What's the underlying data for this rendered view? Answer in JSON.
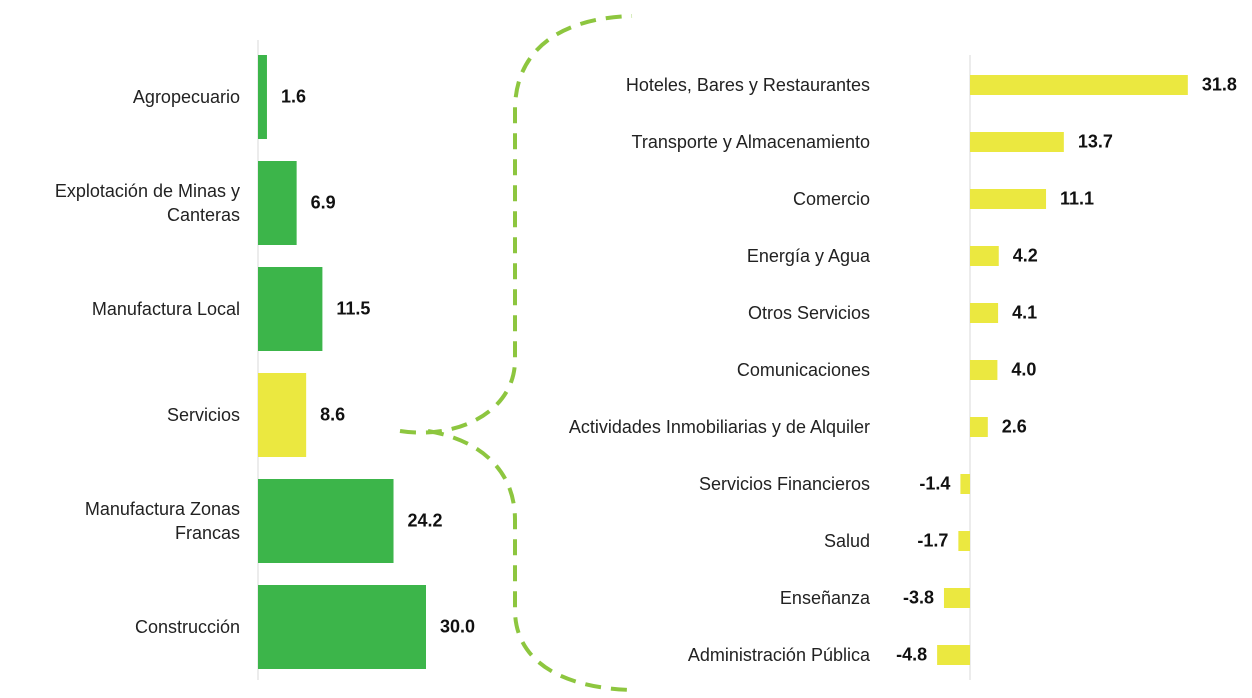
{
  "chart_data": [
    {
      "type": "barh",
      "categories": [
        "Agropecuario",
        "Explotación de Minas y Canteras",
        "Manufactura Local",
        "Servicios",
        "Manufactura Zonas Francas",
        "Construcción"
      ],
      "values": [
        1.6,
        6.9,
        11.5,
        8.6,
        24.2,
        30.0
      ],
      "value_labels": [
        "1.6",
        "6.9",
        "11.5",
        "8.6",
        "24.2",
        "30.0"
      ],
      "colors": [
        "#3cb54a",
        "#3cb54a",
        "#3cb54a",
        "#ebe840",
        "#3cb54a",
        "#3cb54a"
      ],
      "xlim": [
        0,
        35
      ]
    },
    {
      "type": "barh",
      "categories": [
        "Hoteles, Bares y Restaurantes",
        "Transporte y Almacenamiento",
        "Comercio",
        "Energía y Agua",
        "Otros Servicios",
        "Comunicaciones",
        "Actividades Inmobiliarias y de Alquiler",
        "Servicios Financieros",
        "Salud",
        "Enseñanza",
        "Administración Pública"
      ],
      "values": [
        31.8,
        13.7,
        11.1,
        4.2,
        4.1,
        4.0,
        2.6,
        -1.4,
        -1.7,
        -3.8,
        -4.8
      ],
      "value_labels": [
        "31.8",
        "13.7",
        "11.1",
        "4.2",
        "4.1",
        "4.0",
        "2.6",
        "-1.4",
        "-1.7",
        "-3.8",
        "-4.8"
      ],
      "color": "#ebe840",
      "xlim": [
        -5,
        35
      ]
    }
  ]
}
